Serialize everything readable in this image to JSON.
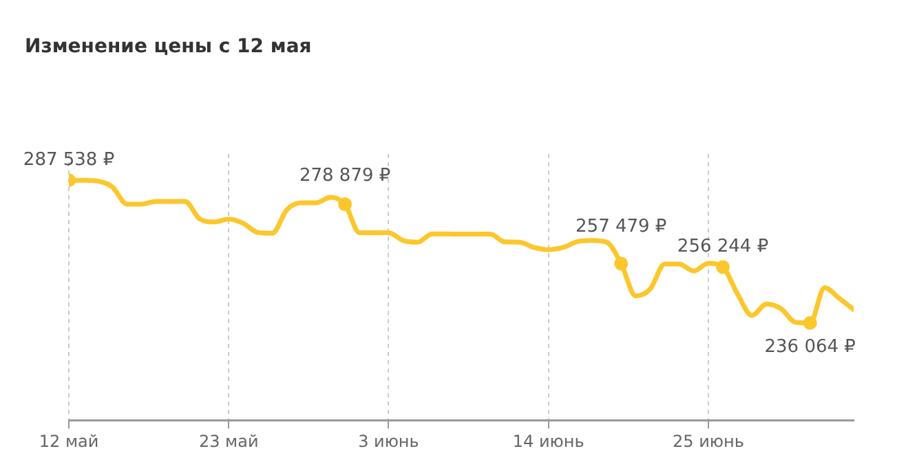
{
  "chart_data": {
    "type": "line",
    "title": "Изменение цены с 12 мая",
    "x": [
      "--05-12",
      "--05-13",
      "--05-14",
      "--05-15",
      "--05-16",
      "--05-17",
      "--05-18",
      "--05-20",
      "--05-21",
      "--05-22",
      "--05-23",
      "--05-24",
      "--05-25",
      "--05-26",
      "--05-27",
      "--05-28",
      "--05-29",
      "--05-30",
      "--05-31",
      "--06-01",
      "--06-03",
      "--06-04",
      "--06-05",
      "--06-06",
      "--06-08",
      "--06-10",
      "--06-11",
      "--06-12",
      "--06-13",
      "--06-14",
      "--06-15",
      "--06-16",
      "--06-17",
      "--06-18",
      "--06-19",
      "--06-20",
      "--06-21",
      "--06-22",
      "--06-23",
      "--06-24",
      "--06-25",
      "--06-26",
      "--06-27",
      "--06-28",
      "--06-29",
      "--06-30",
      "--07-01",
      "--07-02",
      "--07-03",
      "--07-04",
      "--07-05"
    ],
    "series": [
      {
        "color": "#fcc72c",
        "values": [
          287538,
          287500,
          287200,
          285100,
          278900,
          278900,
          279900,
          279900,
          273600,
          272500,
          273500,
          272000,
          268700,
          268400,
          276900,
          279400,
          279400,
          281400,
          278879,
          268600,
          268600,
          265800,
          265200,
          268200,
          268100,
          268100,
          265300,
          265200,
          263300,
          262500,
          263300,
          265400,
          265800,
          265200,
          257479,
          245800,
          248300,
          257300,
          257300,
          254800,
          257600,
          256244,
          246600,
          238800,
          242900,
          241200,
          236300,
          236064,
          248800,
          245000,
          240900
        ],
        "value_labels": [
          "287 538 ₽",
          null,
          null,
          null,
          null,
          null,
          null,
          null,
          null,
          null,
          null,
          null,
          null,
          null,
          null,
          null,
          null,
          null,
          "278 879 ₽",
          null,
          null,
          null,
          null,
          null,
          null,
          null,
          null,
          null,
          null,
          null,
          null,
          null,
          null,
          null,
          "257 479 ₽",
          null,
          null,
          null,
          null,
          null,
          null,
          "256 244 ₽",
          null,
          null,
          null,
          null,
          null,
          "236 064 ₽",
          null,
          null,
          null
        ]
      }
    ],
    "xlim": [
      "--05-12",
      "--07-05"
    ],
    "xticks": [
      {
        "value": "--05-12",
        "label": "12 май"
      },
      {
        "value": "--05-23",
        "label": "23 май"
      },
      {
        "value": "--06-03",
        "label": "3 июнь"
      },
      {
        "value": "--06-14",
        "label": "14 июнь"
      },
      {
        "value": "--06-25",
        "label": "25 июнь"
      }
    ],
    "ylim": [
      201000,
      297000
    ],
    "tick_labels": "x",
    "grid": "x",
    "legend": false,
    "line_style": "solid"
  }
}
